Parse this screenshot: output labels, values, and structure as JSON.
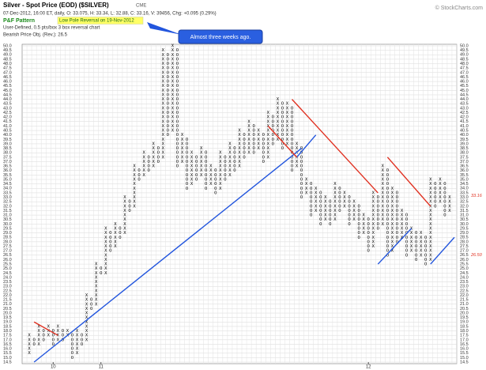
{
  "chart_data": {
    "type": "point_and_figure",
    "title": "Silver - Spot Price (EOD) ($SILVER)",
    "exchange": "CME",
    "quote_line": "07-Dec-2012, 16:00 ET, daily, O: 33.075, H: 33.34, L: 32.88, C: 33.16, V: 39456, Chg: +0.095 (0.29%)",
    "pattern_label": "P&F Pattern",
    "pattern": "Low Pole Reversal on 19-Nov-2012",
    "settings_line": "User-Defined, 0.5 pts/box 3 box reversal chart",
    "objective_line": "Bearish Price Obj. (Rev.): 26.5",
    "copyright": "© StockCharts.com",
    "annotation": "Almost three weeks ago.",
    "box_size": 0.5,
    "x_color": "#000000",
    "o_color": "#000000",
    "ylim": [
      14.5,
      50
    ],
    "yticks": [
      14.5,
      {
        "value": 15,
        "label": "15.0"
      },
      15.5,
      {
        "value": 16,
        "label": "16.0"
      },
      16.5,
      {
        "value": 17,
        "label": "17.0"
      },
      17.5,
      {
        "value": 18,
        "label": "18.0"
      },
      18.5,
      {
        "value": 19,
        "label": "19.0"
      },
      19.5,
      {
        "value": 20,
        "label": "20.0"
      },
      20.5,
      {
        "value": 21,
        "label": "21.0"
      },
      21.5,
      {
        "value": 22,
        "label": "22.0"
      },
      22.5,
      {
        "value": 23,
        "label": "23.0"
      },
      23.5,
      {
        "value": 24,
        "label": "24.0"
      },
      24.5,
      {
        "value": 25,
        "label": "25.0"
      },
      25.5,
      {
        "value": 26,
        "label": "26.0"
      },
      26.5,
      {
        "value": 27,
        "label": "27.0"
      },
      27.5,
      {
        "value": 28,
        "label": "28.0"
      },
      28.5,
      {
        "value": 29,
        "label": "29.0"
      },
      29.5,
      {
        "value": 30,
        "label": "30.0"
      },
      30.5,
      {
        "value": 31,
        "label": "31.0"
      },
      31.5,
      {
        "value": 32,
        "label": "32.0"
      },
      32.5,
      {
        "value": 33,
        "label": "33.0"
      },
      33.5,
      {
        "value": 34,
        "label": "34.0"
      },
      34.5,
      {
        "value": 35,
        "label": "35.0"
      },
      35.5,
      {
        "value": 36,
        "label": "36.0"
      },
      36.5,
      {
        "value": 37,
        "label": "37.0"
      },
      37.5,
      {
        "value": 38,
        "label": "38.0"
      },
      38.5,
      {
        "value": 39,
        "label": "39.0"
      },
      39.5,
      {
        "value": 40,
        "label": "40.0"
      },
      40.5,
      {
        "value": 41,
        "label": "41.0"
      },
      41.5,
      {
        "value": 42,
        "label": "42.0"
      },
      42.5,
      {
        "value": 43,
        "label": "43.0"
      },
      43.5,
      {
        "value": 44,
        "label": "44.0"
      },
      44.5,
      {
        "value": 45,
        "label": "45.0"
      },
      45.5,
      {
        "value": 46,
        "label": "46.0"
      },
      46.5,
      {
        "value": 47,
        "label": "47.0"
      },
      47.5,
      {
        "value": 48,
        "label": "48.0"
      },
      48.5,
      {
        "value": 49,
        "label": "49.0"
      },
      49.5,
      {
        "value": 50,
        "label": "50.0"
      }
    ],
    "grid": true,
    "columns": [
      {
        "t": "X",
        "low": 15.5,
        "high": 17.5
      },
      {
        "t": "O",
        "low": 16.5,
        "high": 17.0
      },
      {
        "t": "X",
        "low": 16.5,
        "high": 18.5
      },
      {
        "t": "O",
        "low": 17.0,
        "high": 18.0
      },
      {
        "t": "X",
        "low": 17.5,
        "high": 18.5
      },
      {
        "t": "O",
        "low": 16.5,
        "high": 18.0
      },
      {
        "t": "X",
        "low": 17.0,
        "high": 18.5
      },
      {
        "t": "O",
        "low": 17.0,
        "high": 18.0
      },
      {
        "t": "X",
        "low": 17.5,
        "high": 18.0
      },
      {
        "t": "O",
        "low": 15.0,
        "high": 17.5
      },
      {
        "t": "X",
        "low": 15.5,
        "high": 18.0
      },
      {
        "t": "O",
        "low": 16.5,
        "high": 17.5
      },
      {
        "t": "X",
        "low": 17.0,
        "high": 22.0
      },
      {
        "t": "O",
        "low": 20.5,
        "high": 21.5
      },
      {
        "t": "X",
        "low": 21.0,
        "high": 25.5
      },
      {
        "t": "O",
        "low": 24.5,
        "high": 25.0
      },
      {
        "t": "X",
        "low": 24.5,
        "high": 29.5
      },
      {
        "t": "O",
        "low": 27.0,
        "high": 29.0
      },
      {
        "t": "X",
        "low": 27.5,
        "high": 30.0
      },
      {
        "t": "O",
        "low": 28.5,
        "high": 29.5
      },
      {
        "t": "X",
        "low": 29.0,
        "high": 33.0
      },
      {
        "t": "O",
        "low": 31.5,
        "high": 32.5
      },
      {
        "t": "X",
        "low": 32.0,
        "high": 36.5
      },
      {
        "t": "O",
        "low": 35.0,
        "high": 36.0
      },
      {
        "t": "X",
        "low": 35.5,
        "high": 38.0
      },
      {
        "t": "O",
        "low": 36.0,
        "high": 37.5
      },
      {
        "t": "X",
        "low": 36.5,
        "high": 39.0
      },
      {
        "t": "O",
        "low": 37.0,
        "high": 38.5
      },
      {
        "t": "X",
        "low": 37.5,
        "high": 49.5
      },
      {
        "t": "O",
        "low": 40.0,
        "high": 49.0
      },
      {
        "t": "X",
        "low": 40.5,
        "high": 50.0
      },
      {
        "t": "O",
        "low": 36.5,
        "high": 49.5
      },
      {
        "t": "X",
        "low": 37.0,
        "high": 40.0
      },
      {
        "t": "O",
        "low": 34.0,
        "high": 39.5
      },
      {
        "t": "X",
        "low": 34.5,
        "high": 38.0
      },
      {
        "t": "O",
        "low": 35.0,
        "high": 37.5
      },
      {
        "t": "X",
        "low": 35.5,
        "high": 38.5
      },
      {
        "t": "O",
        "low": 34.0,
        "high": 38.0
      },
      {
        "t": "X",
        "low": 34.5,
        "high": 36.5
      },
      {
        "t": "O",
        "low": 33.5,
        "high": 36.0
      },
      {
        "t": "X",
        "low": 34.0,
        "high": 38.0
      },
      {
        "t": "O",
        "low": 35.0,
        "high": 37.5
      },
      {
        "t": "X",
        "low": 35.5,
        "high": 39.0
      },
      {
        "t": "O",
        "low": 36.0,
        "high": 38.5
      },
      {
        "t": "X",
        "low": 36.5,
        "high": 40.5
      },
      {
        "t": "O",
        "low": 37.5,
        "high": 40.0
      },
      {
        "t": "X",
        "low": 38.0,
        "high": 41.5
      },
      {
        "t": "O",
        "low": 38.0,
        "high": 41.0
      },
      {
        "t": "X",
        "low": 38.5,
        "high": 40.5
      },
      {
        "t": "O",
        "low": 37.0,
        "high": 40.0
      },
      {
        "t": "X",
        "low": 37.5,
        "high": 42.5
      },
      {
        "t": "O",
        "low": 39.0,
        "high": 42.0
      },
      {
        "t": "X",
        "low": 39.5,
        "high": 44.0
      },
      {
        "t": "O",
        "low": 38.5,
        "high": 43.5
      },
      {
        "t": "X",
        "low": 39.0,
        "high": 43.5
      },
      {
        "t": "O",
        "low": 36.0,
        "high": 43.0
      },
      {
        "t": "X",
        "low": 36.5,
        "high": 39.0
      },
      {
        "t": "O",
        "low": 33.0,
        "high": 38.5
      },
      {
        "t": "X",
        "low": 33.5,
        "high": 35.0
      },
      {
        "t": "O",
        "low": 31.0,
        "high": 34.5
      },
      {
        "t": "X",
        "low": 31.5,
        "high": 34.0
      },
      {
        "t": "O",
        "low": 30.0,
        "high": 33.5
      },
      {
        "t": "X",
        "low": 30.5,
        "high": 33.0
      },
      {
        "t": "O",
        "low": 30.0,
        "high": 32.5
      },
      {
        "t": "X",
        "low": 30.5,
        "high": 34.5
      },
      {
        "t": "O",
        "low": 31.5,
        "high": 34.0
      },
      {
        "t": "X",
        "low": 32.0,
        "high": 33.5
      },
      {
        "t": "O",
        "low": 30.0,
        "high": 33.0
      },
      {
        "t": "X",
        "low": 30.5,
        "high": 32.5
      },
      {
        "t": "O",
        "low": 28.5,
        "high": 32.0
      },
      {
        "t": "X",
        "low": 29.0,
        "high": 31.0
      },
      {
        "t": "O",
        "low": 27.0,
        "high": 30.5
      },
      {
        "t": "X",
        "low": 27.5,
        "high": 33.5
      },
      {
        "t": "O",
        "low": 29.5,
        "high": 33.0
      },
      {
        "t": "X",
        "low": 30.0,
        "high": 36.5
      },
      {
        "t": "O",
        "low": 26.5,
        "high": 36.0
      },
      {
        "t": "X",
        "low": 27.0,
        "high": 34.0
      },
      {
        "t": "O",
        "low": 28.0,
        "high": 33.5
      },
      {
        "t": "X",
        "low": 28.5,
        "high": 31.5
      },
      {
        "t": "O",
        "low": 26.5,
        "high": 31.0
      },
      {
        "t": "X",
        "low": 27.0,
        "high": 29.5
      },
      {
        "t": "O",
        "low": 26.0,
        "high": 29.0
      },
      {
        "t": "X",
        "low": 26.5,
        "high": 29.0
      },
      {
        "t": "O",
        "low": 25.5,
        "high": 28.5
      },
      {
        "t": "X",
        "low": 26.0,
        "high": 35.0
      },
      {
        "t": "O",
        "low": 32.0,
        "high": 34.5
      },
      {
        "t": "X",
        "low": 32.5,
        "high": 35.0
      },
      {
        "t": "O",
        "low": 31.0,
        "high": 34.5
      },
      {
        "t": "X",
        "low": 31.5,
        "high": 33.0
      }
    ],
    "trend_lines": [
      {
        "color": "#2255dd",
        "from": [
          1,
          14.5
        ],
        "to": [
          57,
          38.5
        ]
      },
      {
        "color": "#2255dd",
        "from": [
          56,
          37.5
        ],
        "to": [
          60,
          40.0
        ]
      },
      {
        "color": "#2255dd",
        "from": [
          73,
          25.5
        ],
        "to": [
          80,
          29.5
        ]
      },
      {
        "color": "#2255dd",
        "from": [
          84,
          25.5
        ],
        "to": [
          89,
          28.5
        ]
      },
      {
        "color": "#e03020",
        "from": [
          1,
          19.0
        ],
        "to": [
          6,
          17.5
        ]
      },
      {
        "color": "#e03020",
        "from": [
          50,
          41.0
        ],
        "to": [
          56,
          37.5
        ]
      },
      {
        "color": "#e03020",
        "from": [
          55,
          44.0
        ],
        "to": [
          73,
          33.5
        ]
      },
      {
        "color": "#e03020",
        "from": [
          75,
          37.5
        ],
        "to": [
          84,
          32.0
        ]
      }
    ],
    "year_labels": [
      {
        "label": "10",
        "column": 5
      },
      {
        "label": "11",
        "column": 15
      },
      {
        "label": "12",
        "column": 71
      }
    ],
    "price_labels": [
      {
        "label": "33.16",
        "value": 33.16
      },
      {
        "label": "26.50",
        "value": 26.5
      }
    ],
    "price_label_color": "#e03020"
  }
}
